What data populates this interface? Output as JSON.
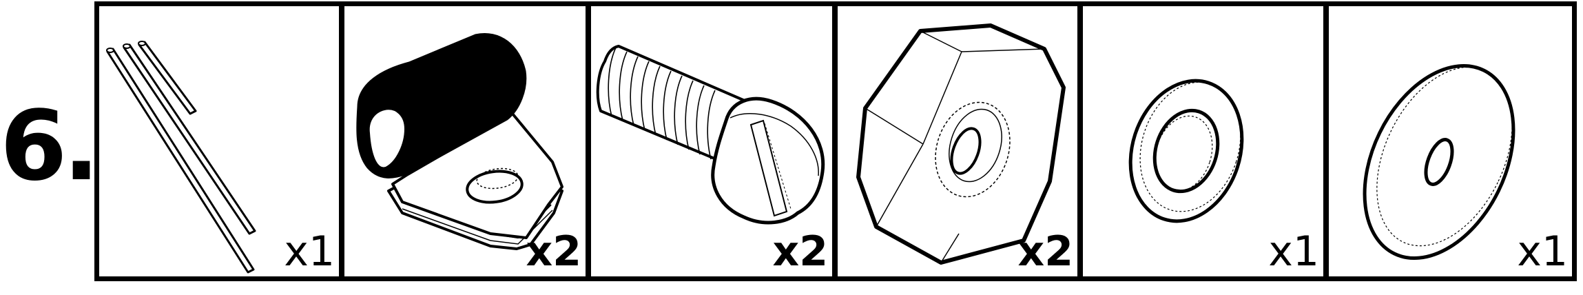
{
  "step": {
    "number": "6."
  },
  "parts": [
    {
      "icon": "rod-icon",
      "quantity": "x1"
    },
    {
      "icon": "cable-clamp-icon",
      "quantity": "x2"
    },
    {
      "icon": "screw-icon",
      "quantity": "x2"
    },
    {
      "icon": "hex-nut-icon",
      "quantity": "x2"
    },
    {
      "icon": "washer-icon",
      "quantity": "x1"
    },
    {
      "icon": "large-washer-icon",
      "quantity": "x1"
    }
  ]
}
